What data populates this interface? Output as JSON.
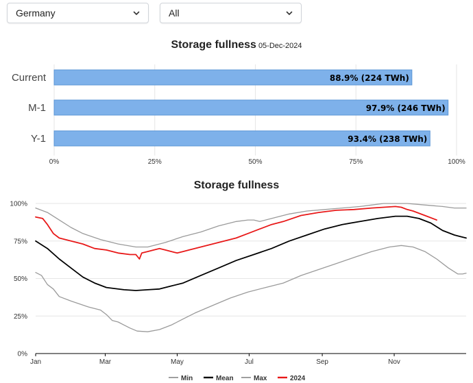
{
  "controls": {
    "country": {
      "value": "Germany"
    },
    "filter": {
      "value": "All"
    }
  },
  "colors": {
    "bar_fill": "#7eb1ea",
    "bar_stroke": "#5b96d6",
    "grid": "#e6e6e6",
    "min": "#9a9a9a",
    "mean": "#000000",
    "max": "#9a9a9a",
    "current_year": "#e81818"
  },
  "chart_data": [
    {
      "type": "bar",
      "orientation": "horizontal",
      "title": "Storage fullness",
      "subtitle": "05-Dec-2024",
      "categories": [
        "Current",
        "M-1",
        "Y-1"
      ],
      "values": [
        88.9,
        97.9,
        93.4
      ],
      "data_labels": [
        "88.9% (224 TWh)",
        "97.9% (246 TWh)",
        "93.4% (238 TWh)"
      ],
      "xlim": [
        0,
        100
      ],
      "xticks": [
        "0%",
        "25%",
        "50%",
        "75%",
        "100%"
      ],
      "grid": true
    },
    {
      "type": "line",
      "title": "Storage fullness",
      "ylim": [
        0,
        100
      ],
      "yticks": [
        "0%",
        "25%",
        "50%",
        "75%",
        "100%"
      ],
      "xlim": [
        0,
        365
      ],
      "xticks": [
        {
          "label": "Jan",
          "day": 0
        },
        {
          "label": "Mar",
          "day": 59
        },
        {
          "label": "May",
          "day": 120
        },
        {
          "label": "Jul",
          "day": 181
        },
        {
          "label": "Sep",
          "day": 243
        },
        {
          "label": "Nov",
          "day": 304
        }
      ],
      "grid": true,
      "legend_position": "bottom-center",
      "series": [
        {
          "name": "Min",
          "color": "#9a9a9a",
          "width": 1.3,
          "points": [
            [
              0,
              54
            ],
            [
              5,
              52
            ],
            [
              10,
              46
            ],
            [
              15,
              43
            ],
            [
              20,
              38
            ],
            [
              30,
              35
            ],
            [
              45,
              31
            ],
            [
              55,
              29
            ],
            [
              60,
              26
            ],
            [
              65,
              22
            ],
            [
              70,
              21
            ],
            [
              75,
              19
            ],
            [
              80,
              17
            ],
            [
              86,
              15
            ],
            [
              95,
              14.5
            ],
            [
              105,
              16
            ],
            [
              115,
              19
            ],
            [
              125,
              23
            ],
            [
              135,
              27
            ],
            [
              150,
              32
            ],
            [
              165,
              37
            ],
            [
              180,
              41
            ],
            [
              195,
              44
            ],
            [
              210,
              47
            ],
            [
              225,
              52
            ],
            [
              240,
              56
            ],
            [
              255,
              60
            ],
            [
              270,
              64
            ],
            [
              285,
              68
            ],
            [
              300,
              71
            ],
            [
              310,
              72
            ],
            [
              320,
              71
            ],
            [
              330,
              68
            ],
            [
              340,
              63
            ],
            [
              350,
              57
            ],
            [
              358,
              53
            ],
            [
              362,
              53
            ],
            [
              365,
              53.5
            ]
          ]
        },
        {
          "name": "Mean",
          "color": "#000000",
          "width": 1.8,
          "points": [
            [
              0,
              75
            ],
            [
              10,
              70
            ],
            [
              20,
              63
            ],
            [
              30,
              57
            ],
            [
              40,
              51
            ],
            [
              50,
              47
            ],
            [
              60,
              44
            ],
            [
              75,
              42.5
            ],
            [
              85,
              42
            ],
            [
              95,
              42.5
            ],
            [
              105,
              43
            ],
            [
              115,
              45
            ],
            [
              125,
              47
            ],
            [
              140,
              52
            ],
            [
              155,
              57
            ],
            [
              170,
              62
            ],
            [
              185,
              66
            ],
            [
              200,
              70
            ],
            [
              215,
              75
            ],
            [
              230,
              79
            ],
            [
              245,
              83
            ],
            [
              260,
              86
            ],
            [
              275,
              88
            ],
            [
              290,
              90
            ],
            [
              305,
              91.5
            ],
            [
              315,
              91.5
            ],
            [
              325,
              90
            ],
            [
              335,
              87
            ],
            [
              345,
              82
            ],
            [
              355,
              79
            ],
            [
              360,
              78
            ],
            [
              365,
              77
            ]
          ]
        },
        {
          "name": "Max",
          "color": "#9a9a9a",
          "width": 1.3,
          "points": [
            [
              0,
              97
            ],
            [
              10,
              94
            ],
            [
              20,
              89
            ],
            [
              30,
              84
            ],
            [
              40,
              80
            ],
            [
              55,
              76
            ],
            [
              70,
              73
            ],
            [
              85,
              71
            ],
            [
              95,
              71
            ],
            [
              110,
              74
            ],
            [
              125,
              78
            ],
            [
              140,
              81
            ],
            [
              155,
              85
            ],
            [
              170,
              88
            ],
            [
              180,
              89
            ],
            [
              185,
              89
            ],
            [
              190,
              88
            ],
            [
              200,
              90
            ],
            [
              215,
              93
            ],
            [
              230,
              95
            ],
            [
              245,
              96
            ],
            [
              260,
              97
            ],
            [
              275,
              98
            ],
            [
              285,
              99
            ],
            [
              295,
              100
            ],
            [
              305,
              100
            ],
            [
              315,
              100
            ],
            [
              330,
              99
            ],
            [
              345,
              98
            ],
            [
              355,
              97
            ],
            [
              365,
              97
            ]
          ]
        },
        {
          "name": "2024",
          "color": "#e81818",
          "width": 1.8,
          "points": [
            [
              0,
              91
            ],
            [
              6,
              90
            ],
            [
              10,
              86
            ],
            [
              15,
              80
            ],
            [
              20,
              77
            ],
            [
              30,
              75
            ],
            [
              40,
              73
            ],
            [
              50,
              70
            ],
            [
              60,
              69
            ],
            [
              70,
              67
            ],
            [
              80,
              66
            ],
            [
              85,
              66
            ],
            [
              88,
              63
            ],
            [
              90,
              67
            ],
            [
              95,
              68
            ],
            [
              100,
              69
            ],
            [
              105,
              70
            ],
            [
              110,
              69
            ],
            [
              115,
              68
            ],
            [
              120,
              67
            ],
            [
              125,
              68
            ],
            [
              130,
              69
            ],
            [
              140,
              71
            ],
            [
              150,
              73
            ],
            [
              160,
              75
            ],
            [
              170,
              77
            ],
            [
              180,
              80
            ],
            [
              190,
              83
            ],
            [
              200,
              86
            ],
            [
              210,
              88
            ],
            [
              225,
              92
            ],
            [
              240,
              94
            ],
            [
              255,
              95.5
            ],
            [
              270,
              96
            ],
            [
              285,
              97
            ],
            [
              295,
              97.5
            ],
            [
              305,
              98
            ],
            [
              310,
              97.5
            ],
            [
              315,
              96
            ],
            [
              320,
              95
            ],
            [
              330,
              92
            ],
            [
              340,
              89
            ]
          ]
        }
      ]
    }
  ]
}
